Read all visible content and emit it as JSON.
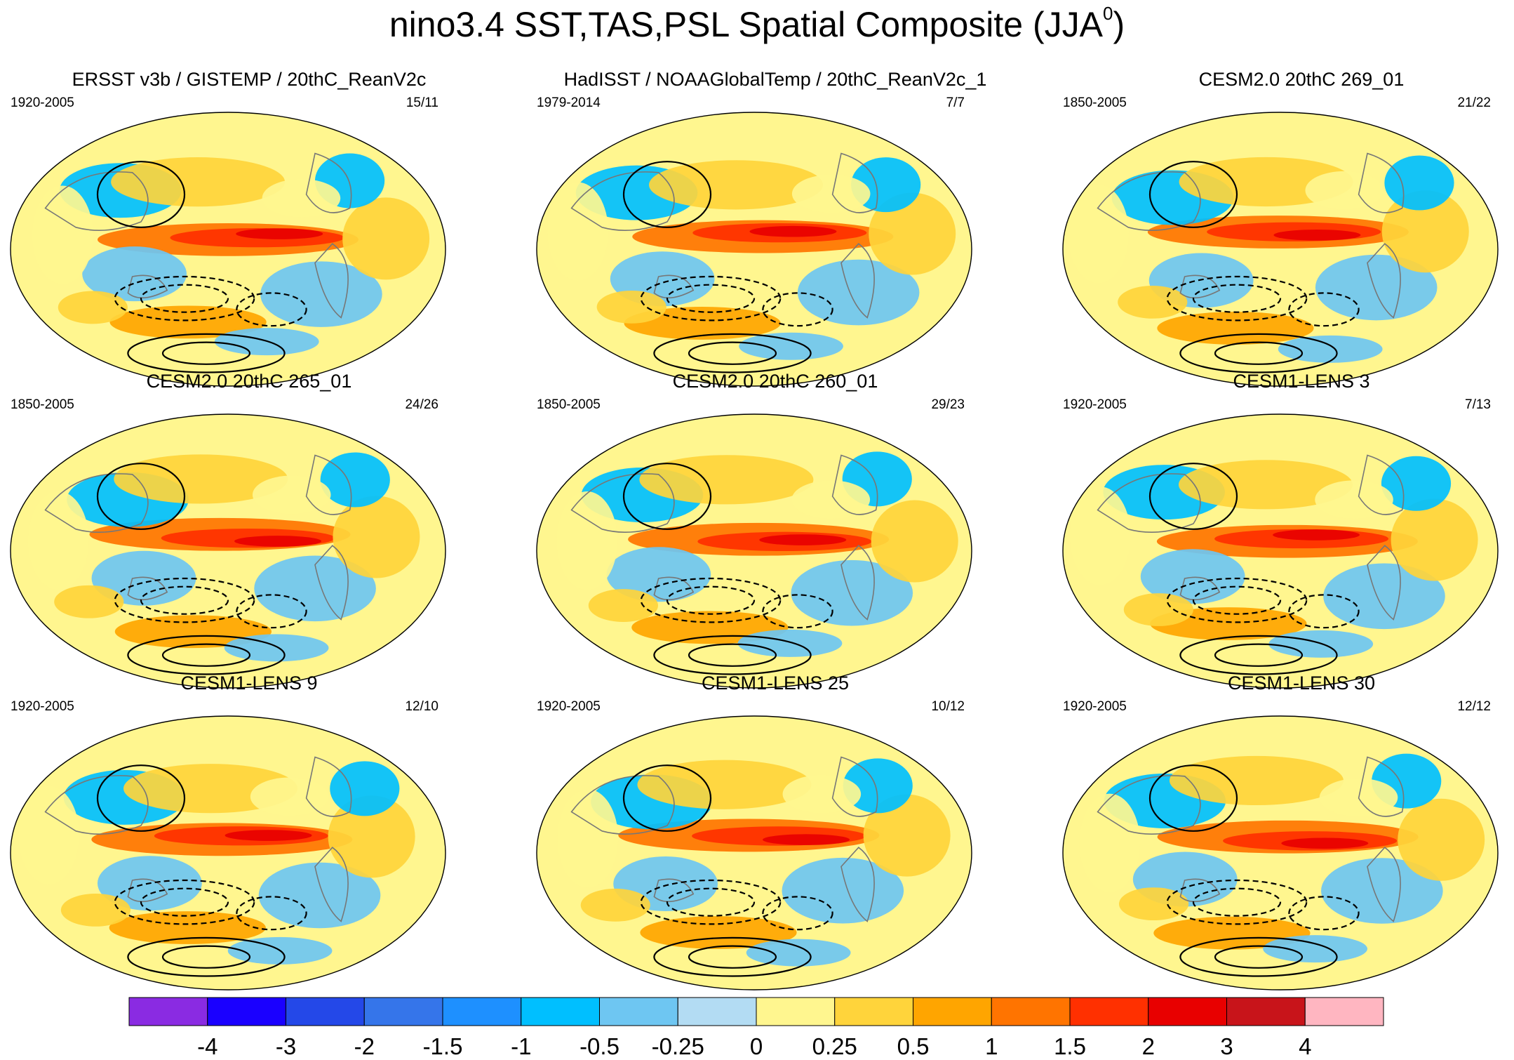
{
  "chart_data": {
    "type": "heatmap",
    "title": "nino3.4 SST,TAS,PSL Spatial Composite (JJA",
    "title_superscript": "0",
    "panels": [
      {
        "name": "ERSST v3b / GISTEMP / 20thC_ReanV2c",
        "years": "1920-2005",
        "count": "15/11"
      },
      {
        "name": "HadISST / NOAAGlobalTemp / 20thC_ReanV2c_1",
        "years": "1979-2014",
        "count": "7/7"
      },
      {
        "name": "CESM2.0 20thC 269_01",
        "years": "1850-2005",
        "count": "21/22"
      },
      {
        "name": "CESM2.0 20thC 265_01",
        "years": "1850-2005",
        "count": "24/26"
      },
      {
        "name": "CESM2.0 20thC 260_01",
        "years": "1850-2005",
        "count": "29/23"
      },
      {
        "name": "CESM1-LENS 3",
        "years": "1920-2005",
        "count": "7/13"
      },
      {
        "name": "CESM1-LENS 9",
        "years": "1920-2005",
        "count": "12/10"
      },
      {
        "name": "CESM1-LENS 25",
        "years": "1920-2005",
        "count": "10/12"
      },
      {
        "name": "CESM1-LENS 30",
        "years": "1920-2005",
        "count": "12/12"
      }
    ],
    "colorbar": {
      "levels": [
        "-4",
        "-3",
        "-2",
        "-1.5",
        "-1",
        "-0.5",
        "-0.25",
        "0",
        "0.25",
        "0.5",
        "1",
        "1.5",
        "2",
        "3",
        "4"
      ],
      "colors": [
        "#8a2be2",
        "#1a00ff",
        "#2448e8",
        "#3575ea",
        "#1e90ff",
        "#00bfff",
        "#6ec6f2",
        "#b3dcf3",
        "#fff68f",
        "#ffd43b",
        "#ffa500",
        "#ff7400",
        "#ff3000",
        "#e80000",
        "#c8141a",
        "#ffb6c1"
      ]
    }
  }
}
